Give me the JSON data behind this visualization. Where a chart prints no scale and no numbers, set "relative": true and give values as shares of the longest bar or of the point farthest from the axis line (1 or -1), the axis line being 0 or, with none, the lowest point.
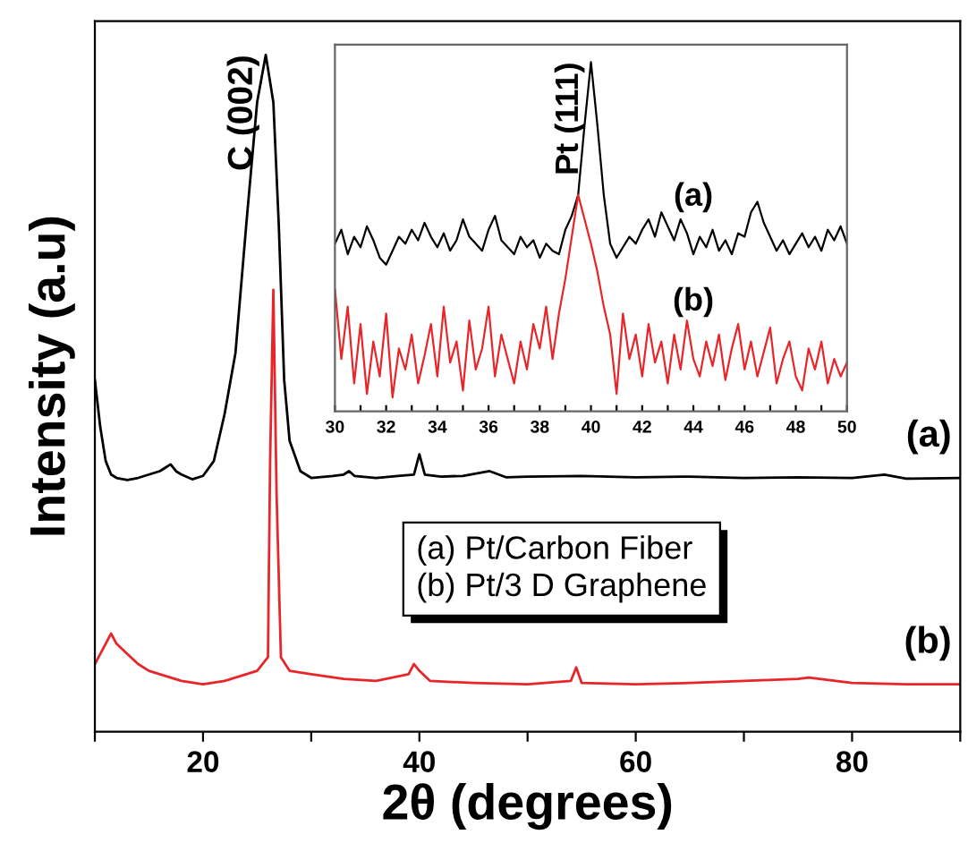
{
  "chart_data": [
    {
      "type": "line",
      "relative": true,
      "xlabel": "2θ (degrees)",
      "ylabel": "Intensity (a.u)",
      "xlim": [
        10,
        90
      ],
      "xticks": [
        {
          "value": 10,
          "label": null
        },
        20,
        {
          "value": 30,
          "label": null
        },
        40,
        {
          "value": 50,
          "label": null
        },
        60,
        {
          "value": 70,
          "label": null
        },
        80,
        {
          "value": 90,
          "label": null
        }
      ],
      "tick_labels": "x",
      "grid": false,
      "legend": false,
      "marker": "none",
      "line_style": "solid",
      "annotations": [
        {
          "text": "C (002)",
          "x": 25.8,
          "y": 1.0
        },
        "(a) Pt/Carbon Fiber\n(b) Pt/3 D Graphene"
      ],
      "series": [
        {
          "name": "(a)",
          "color": "#000000",
          "x": [
            10,
            10.5,
            11,
            11.5,
            12,
            13,
            14,
            15,
            16,
            16.5,
            17,
            17.5,
            18,
            19,
            20,
            21,
            22,
            23,
            24,
            25,
            25.8,
            26.5,
            27,
            27.5,
            28,
            29,
            30,
            32,
            33,
            33.5,
            34,
            36,
            38,
            39.5,
            40,
            40.5,
            42,
            44,
            46.5,
            48,
            50,
            55,
            60,
            65,
            70,
            75,
            80,
            83,
            85,
            90
          ],
          "values": [
            0.52,
            0.45,
            0.4,
            0.38,
            0.375,
            0.372,
            0.375,
            0.38,
            0.385,
            0.39,
            0.395,
            0.385,
            0.38,
            0.373,
            0.378,
            0.4,
            0.47,
            0.56,
            0.75,
            0.93,
            1.0,
            0.93,
            0.75,
            0.52,
            0.43,
            0.385,
            0.375,
            0.378,
            0.38,
            0.385,
            0.378,
            0.375,
            0.378,
            0.38,
            0.41,
            0.38,
            0.377,
            0.378,
            0.385,
            0.376,
            0.377,
            0.378,
            0.376,
            0.377,
            0.375,
            0.376,
            0.375,
            0.38,
            0.374,
            0.375
          ]
        },
        {
          "name": "(b)",
          "color": "#e8262a",
          "x": [
            10,
            11,
            11.5,
            12,
            13,
            14,
            15,
            16,
            18,
            20,
            22,
            24,
            25,
            26,
            26.2,
            26.5,
            26.8,
            27.2,
            28,
            30,
            33,
            36,
            39,
            39.5,
            40,
            41,
            45,
            50,
            54,
            54.5,
            55,
            60,
            65,
            70,
            75,
            76,
            80,
            85,
            90
          ],
          "values": [
            0.1,
            0.13,
            0.145,
            0.13,
            0.115,
            0.1,
            0.09,
            0.085,
            0.075,
            0.07,
            0.075,
            0.085,
            0.09,
            0.11,
            0.4,
            0.653,
            0.35,
            0.11,
            0.09,
            0.085,
            0.078,
            0.075,
            0.085,
            0.1,
            0.09,
            0.075,
            0.072,
            0.07,
            0.075,
            0.095,
            0.072,
            0.07,
            0.072,
            0.075,
            0.078,
            0.08,
            0.072,
            0.07,
            0.07
          ]
        }
      ]
    },
    {
      "type": "line",
      "relative": true,
      "xlim": [
        30,
        50
      ],
      "xticks": [
        30,
        {
          "value": 31,
          "label": null
        },
        32,
        {
          "value": 33,
          "label": null
        },
        34,
        {
          "value": 35,
          "label": null
        },
        36,
        {
          "value": 37,
          "label": null
        },
        38,
        {
          "value": 39,
          "label": null
        },
        40,
        {
          "value": 41,
          "label": null
        },
        42,
        {
          "value": 43,
          "label": null
        },
        44,
        {
          "value": 45,
          "label": null
        },
        46,
        {
          "value": 47,
          "label": null
        },
        48,
        {
          "value": 49,
          "label": null
        },
        50
      ],
      "tick_labels": "x",
      "grid": false,
      "legend": false,
      "marker": "none",
      "line_style": "solid",
      "annotations": [
        {
          "text": "Pt (111)",
          "x": 40,
          "y": 1.0
        }
      ],
      "series": [
        {
          "name": "(a)",
          "color": "#000000",
          "x": [
            30,
            30.25,
            30.5,
            30.75,
            31,
            31.25,
            31.5,
            31.75,
            32,
            32.25,
            32.5,
            32.75,
            33,
            33.25,
            33.5,
            33.75,
            34,
            34.25,
            34.5,
            34.75,
            35,
            35.25,
            35.5,
            35.75,
            36,
            36.25,
            36.5,
            36.75,
            37,
            37.25,
            37.5,
            37.75,
            38,
            38.25,
            38.5,
            38.75,
            39,
            39.25,
            39.5,
            39.75,
            40,
            40.25,
            40.5,
            40.75,
            41,
            41.25,
            41.5,
            41.75,
            42,
            42.25,
            42.5,
            42.75,
            43,
            43.25,
            43.5,
            43.75,
            44,
            44.25,
            44.5,
            44.75,
            45,
            45.25,
            45.5,
            45.75,
            46,
            46.25,
            46.5,
            46.75,
            47,
            47.25,
            47.5,
            47.75,
            48,
            48.25,
            48.5,
            48.75,
            49,
            49.25,
            49.5,
            49.75,
            50
          ],
          "values": [
            0.48,
            0.52,
            0.45,
            0.5,
            0.47,
            0.53,
            0.49,
            0.44,
            0.42,
            0.46,
            0.5,
            0.48,
            0.52,
            0.49,
            0.54,
            0.5,
            0.47,
            0.51,
            0.46,
            0.49,
            0.55,
            0.5,
            0.48,
            0.46,
            0.52,
            0.56,
            0.49,
            0.47,
            0.45,
            0.5,
            0.47,
            0.49,
            0.44,
            0.48,
            0.46,
            0.45,
            0.52,
            0.56,
            0.62,
            0.82,
            1.0,
            0.82,
            0.62,
            0.48,
            0.44,
            0.47,
            0.5,
            0.48,
            0.52,
            0.55,
            0.5,
            0.57,
            0.53,
            0.49,
            0.55,
            0.51,
            0.45,
            0.5,
            0.47,
            0.52,
            0.46,
            0.49,
            0.45,
            0.51,
            0.5,
            0.57,
            0.6,
            0.54,
            0.5,
            0.46,
            0.49,
            0.45,
            0.48,
            0.51,
            0.47,
            0.5,
            0.46,
            0.52,
            0.49,
            0.53,
            0.48
          ]
        },
        {
          "name": "(b)",
          "color": "#e8262a",
          "x": [
            30,
            30.25,
            30.5,
            30.75,
            31,
            31.25,
            31.5,
            31.75,
            32,
            32.25,
            32.5,
            32.75,
            33,
            33.25,
            33.5,
            33.75,
            34,
            34.25,
            34.5,
            34.75,
            35,
            35.25,
            35.5,
            35.75,
            36,
            36.25,
            36.5,
            36.75,
            37,
            37.25,
            37.5,
            37.75,
            38,
            38.25,
            38.5,
            38.75,
            39,
            39.25,
            39.5,
            39.75,
            40,
            40.25,
            40.5,
            40.75,
            41,
            41.25,
            41.5,
            41.75,
            42,
            42.25,
            42.5,
            42.75,
            43,
            43.25,
            43.5,
            43.75,
            44,
            44.25,
            44.5,
            44.75,
            45,
            45.25,
            45.5,
            45.75,
            46,
            46.25,
            46.5,
            46.75,
            47,
            47.25,
            47.5,
            47.75,
            48,
            48.25,
            48.5,
            48.75,
            49,
            49.25,
            49.5,
            49.75,
            50
          ],
          "values": [
            0.35,
            0.15,
            0.3,
            0.08,
            0.25,
            0.05,
            0.2,
            0.1,
            0.28,
            0.04,
            0.18,
            0.12,
            0.22,
            0.08,
            0.16,
            0.25,
            0.1,
            0.3,
            0.14,
            0.2,
            0.06,
            0.26,
            0.12,
            0.18,
            0.3,
            0.1,
            0.22,
            0.15,
            0.08,
            0.2,
            0.12,
            0.25,
            0.18,
            0.3,
            0.15,
            0.28,
            0.38,
            0.5,
            0.62,
            0.55,
            0.48,
            0.4,
            0.3,
            0.22,
            0.05,
            0.28,
            0.15,
            0.22,
            0.1,
            0.25,
            0.14,
            0.2,
            0.08,
            0.22,
            0.12,
            0.26,
            0.15,
            0.1,
            0.2,
            0.13,
            0.22,
            0.09,
            0.18,
            0.25,
            0.12,
            0.2,
            0.1,
            0.17,
            0.24,
            0.08,
            0.15,
            0.2,
            0.1,
            0.06,
            0.18,
            0.12,
            0.2,
            0.08,
            0.15,
            0.1,
            0.14
          ]
        }
      ]
    }
  ]
}
